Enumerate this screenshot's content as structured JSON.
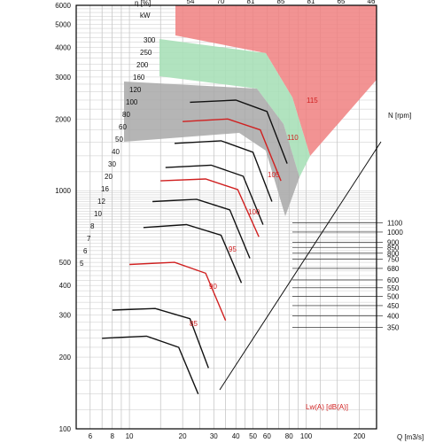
{
  "chart_data": {
    "type": "line",
    "title": "",
    "xlabel": "Q [m3/s]",
    "ylabel": "",
    "x_scale": "log",
    "y_scale": "log",
    "xlim": [
      5,
      250
    ],
    "ylim": [
      100,
      6000
    ],
    "x_ticks": [
      "6",
      "8",
      "10",
      "20",
      "30",
      "40",
      "50",
      "60",
      "80",
      "100",
      "200"
    ],
    "y_ticks": [
      "100",
      "200",
      "300",
      "400",
      "500",
      "1000",
      "2000",
      "3000",
      "4000",
      "5000",
      "6000"
    ],
    "power_unit": "kW",
    "power_labels": [
      "5",
      "6",
      "7",
      "8",
      "10",
      "12",
      "16",
      "20",
      "30",
      "40",
      "50",
      "60",
      "80",
      "100",
      "120",
      "160",
      "200",
      "250",
      "300"
    ],
    "efficiency_label": "η [%]",
    "efficiency_values": [
      "54",
      "70",
      "81",
      "85",
      "81",
      "65",
      "46"
    ],
    "rpm_label": "N [rpm]",
    "rpm_values": [
      "350",
      "400",
      "450",
      "500",
      "550",
      "600",
      "680",
      "750",
      "800",
      "850",
      "900",
      "1000",
      "1100"
    ],
    "sound_values": [
      "85",
      "90",
      "95",
      "100",
      "105",
      "110",
      "115"
    ],
    "sound_label": "Lw(A)  [dB(A)]",
    "zone_colors": {
      "restricted": "#f08080",
      "high": "#a8e0b8",
      "medium": "#a8a8a8",
      "curve_red": "#d02020"
    },
    "series": [
      {
        "name": "1100",
        "values": [
          [
            22,
            2350
          ],
          [
            40,
            2400
          ],
          [
            60,
            2150
          ],
          [
            78,
            1300
          ]
        ]
      },
      {
        "name": "1000",
        "values": [
          [
            20,
            1950
          ],
          [
            36,
            2000
          ],
          [
            55,
            1800
          ],
          [
            72,
            1100
          ]
        ]
      },
      {
        "name": "900",
        "values": [
          [
            18,
            1580
          ],
          [
            33,
            1620
          ],
          [
            50,
            1450
          ],
          [
            64,
            900
          ]
        ]
      },
      {
        "name": "800",
        "values": [
          [
            16,
            1250
          ],
          [
            29,
            1280
          ],
          [
            44,
            1150
          ],
          [
            57,
            720
          ]
        ]
      },
      {
        "name": "750",
        "values": [
          [
            15,
            1100
          ],
          [
            27,
            1120
          ],
          [
            41,
            1010
          ],
          [
            54,
            640
          ]
        ]
      },
      {
        "name": "680",
        "values": [
          [
            13.5,
            900
          ],
          [
            24,
            920
          ],
          [
            37,
            830
          ],
          [
            48,
            520
          ]
        ]
      },
      {
        "name": "600",
        "values": [
          [
            12,
            700
          ],
          [
            21,
            720
          ],
          [
            33,
            650
          ],
          [
            43,
            410
          ]
        ]
      },
      {
        "name": "500",
        "values": [
          [
            10,
            490
          ],
          [
            18,
            500
          ],
          [
            27,
            450
          ],
          [
            35,
            285
          ]
        ]
      },
      {
        "name": "400",
        "values": [
          [
            8,
            315
          ],
          [
            14,
            320
          ],
          [
            22,
            290
          ],
          [
            28,
            180
          ]
        ]
      },
      {
        "name": "350",
        "values": [
          [
            7,
            240
          ],
          [
            12.5,
            245
          ],
          [
            19,
            220
          ],
          [
            24.5,
            140
          ]
        ]
      }
    ]
  }
}
